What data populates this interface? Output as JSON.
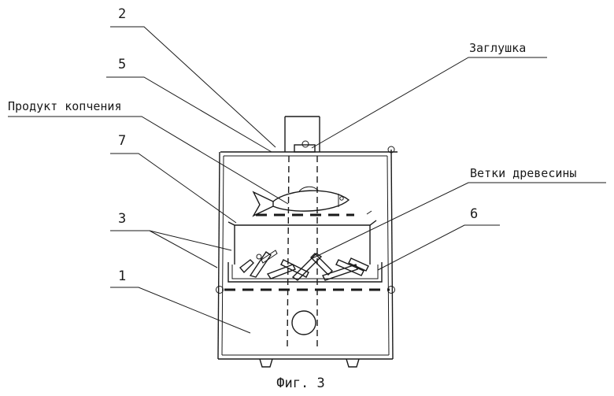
{
  "labels": {
    "n1": "1",
    "n2": "2",
    "n3": "3",
    "n5": "5",
    "n6": "6",
    "n7": "7",
    "plug": "Заглушка",
    "product": "Продукт копчения",
    "branches": "Ветки древесины"
  },
  "caption": "Фиг. 3"
}
